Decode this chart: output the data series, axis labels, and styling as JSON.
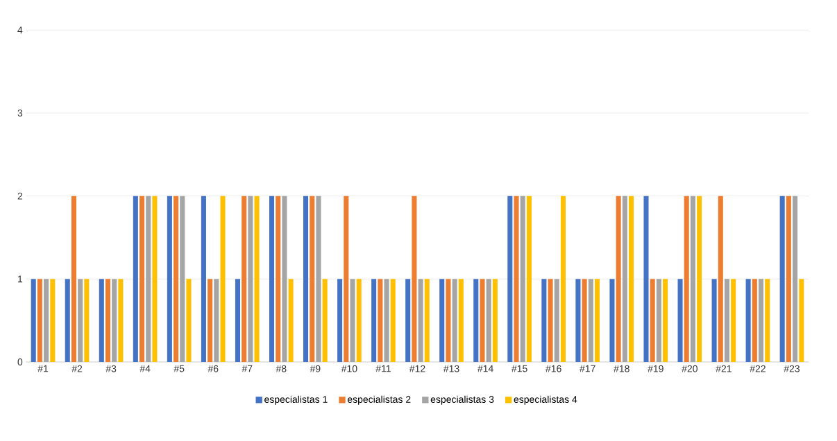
{
  "chart_data": {
    "type": "bar",
    "categories": [
      "#1",
      "#2",
      "#3",
      "#4",
      "#5",
      "#6",
      "#7",
      "#8",
      "#9",
      "#10",
      "#11",
      "#12",
      "#13",
      "#14",
      "#15",
      "#16",
      "#17",
      "#18",
      "#19",
      "#20",
      "#21",
      "#22",
      "#23"
    ],
    "series": [
      {
        "name": "especialistas 1",
        "color": "#4472c4",
        "values": [
          1,
          1,
          1,
          2,
          2,
          2,
          1,
          2,
          2,
          1,
          1,
          1,
          1,
          1,
          2,
          1,
          1,
          1,
          2,
          1,
          1,
          1,
          2
        ]
      },
      {
        "name": "especialistas 2",
        "color": "#ed7d31",
        "values": [
          1,
          2,
          1,
          2,
          2,
          1,
          2,
          2,
          2,
          2,
          1,
          2,
          1,
          1,
          2,
          1,
          1,
          2,
          1,
          2,
          2,
          1,
          2
        ]
      },
      {
        "name": "especialistas 3",
        "color": "#a5a5a5",
        "values": [
          1,
          1,
          1,
          2,
          2,
          1,
          2,
          2,
          2,
          1,
          1,
          1,
          1,
          1,
          2,
          1,
          1,
          2,
          1,
          2,
          1,
          1,
          2
        ]
      },
      {
        "name": "especialistas 4",
        "color": "#ffc000",
        "values": [
          1,
          1,
          1,
          2,
          1,
          2,
          2,
          1,
          1,
          1,
          1,
          1,
          1,
          1,
          2,
          2,
          1,
          2,
          1,
          2,
          1,
          1,
          1
        ]
      }
    ],
    "ylim": [
      0,
      4
    ],
    "yticks": [
      0,
      1,
      2,
      3,
      4
    ],
    "grid": "y",
    "legend": "bottom"
  }
}
